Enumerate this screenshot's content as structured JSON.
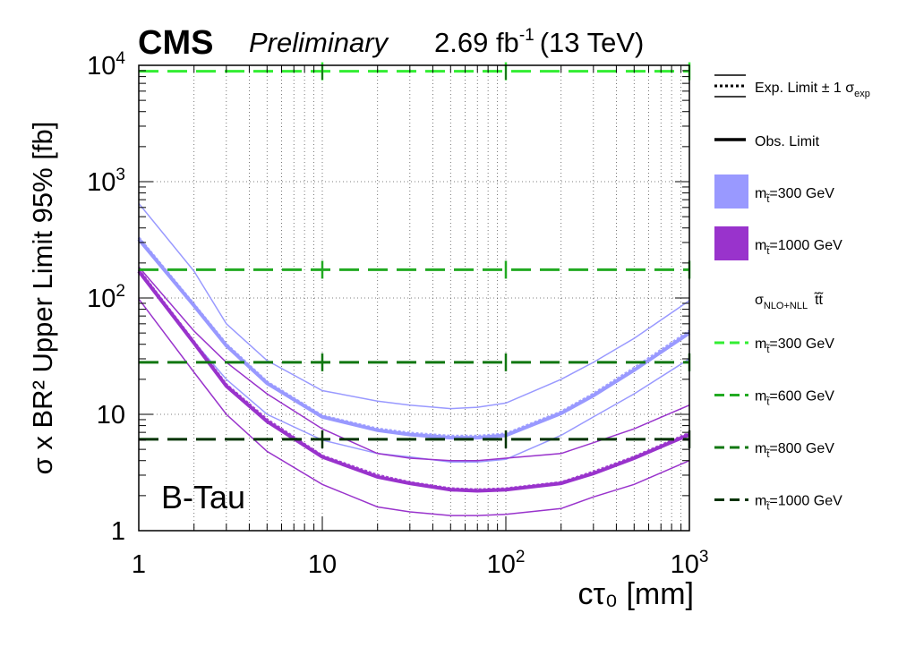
{
  "header": {
    "experiment": "CMS",
    "status": "Preliminary",
    "lumi_value": "2.69 fb",
    "lumi_exp": "-1",
    "energy": "(13 TeV)"
  },
  "chart_data": {
    "type": "line",
    "channel_label": "B-Tau",
    "ylabel": "σ x BR² Upper Limit 95% [fb]",
    "xlabel": "cτ₀ [mm]",
    "x_scale": "log",
    "y_scale": "log",
    "xlim": [
      1,
      1000
    ],
    "ylim": [
      1,
      10000
    ],
    "grid": true,
    "legend_position": "right",
    "x_ticks": [
      {
        "base": "1",
        "exp": ""
      },
      {
        "base": "10",
        "exp": ""
      },
      {
        "base": "10",
        "exp": "2"
      },
      {
        "base": "10",
        "exp": "3"
      }
    ],
    "y_ticks": [
      {
        "base": "1",
        "exp": ""
      },
      {
        "base": "10",
        "exp": ""
      },
      {
        "base": "10",
        "exp": "2"
      },
      {
        "base": "10",
        "exp": "3"
      },
      {
        "base": "10",
        "exp": "4"
      }
    ],
    "x": [
      1,
      2,
      3,
      5,
      10,
      20,
      30,
      50,
      70,
      100,
      200,
      300,
      500,
      1000
    ],
    "signal_series": [
      {
        "name": "m_t̃=300 GeV",
        "color": "#9999ff",
        "expected": [
          330,
          88,
          40,
          19,
          9.7,
          7.5,
          6.9,
          6.5,
          6.5,
          6.8,
          10.5,
          15,
          25,
          52
        ],
        "observed": [
          320,
          86,
          39,
          18.5,
          9.5,
          7.3,
          6.7,
          6.3,
          6.3,
          6.6,
          10.2,
          14.5,
          24,
          50
        ],
        "band_up": [
          650,
          170,
          60,
          29,
          16,
          13,
          12,
          11.2,
          11.5,
          12.5,
          20,
          28,
          45,
          95
        ],
        "band_down": [
          170,
          42,
          20,
          10,
          6,
          4.6,
          4.3,
          3.9,
          3.9,
          4.1,
          6.6,
          9.5,
          15,
          30
        ]
      },
      {
        "name": "m_t̃=1000 GeV",
        "color": "#9933cc",
        "expected": [
          175,
          42,
          18,
          9,
          4.4,
          3.0,
          2.6,
          2.3,
          2.25,
          2.3,
          2.6,
          3.2,
          4.3,
          6.9
        ],
        "observed": [
          170,
          41,
          17.5,
          8.7,
          4.3,
          2.9,
          2.55,
          2.25,
          2.2,
          2.25,
          2.55,
          3.1,
          4.2,
          6.7
        ],
        "band_up": [
          185,
          52,
          28,
          15,
          7.5,
          4.6,
          4.2,
          4.0,
          4.0,
          4.2,
          4.6,
          5.7,
          7.5,
          12
        ],
        "band_down": [
          98,
          23,
          10,
          4.8,
          2.5,
          1.6,
          1.45,
          1.35,
          1.35,
          1.38,
          1.55,
          1.95,
          2.5,
          4.0
        ]
      }
    ],
    "theory_series": [
      {
        "name": "m_t̃=300 GeV",
        "value": 8900,
        "color": "#33ee33"
      },
      {
        "name": "m_t̃=600 GeV",
        "value": 175,
        "color": "#22aa22"
      },
      {
        "name": "m_t̃=800 GeV",
        "value": 28,
        "color": "#117711"
      },
      {
        "name": "m_t̃=1000 GeV",
        "value": 6.1,
        "color": "#003300"
      }
    ]
  },
  "legend": {
    "exp_limit": "Exp. Limit ± 1 σ",
    "exp_subscript": "exp",
    "obs_limit": "Obs. Limit",
    "signal_items": [
      {
        "prefix": "m",
        "sub": "t̃",
        "label": "=300 GeV",
        "color": "#9999ff"
      },
      {
        "prefix": "m",
        "sub": "t̃",
        "label": "=1000 GeV",
        "color": "#9933cc"
      }
    ],
    "xsec_header": "σ",
    "xsec_sub": "NLO+NLL",
    "xsec_tail": "t̃t̃",
    "theory_items": [
      {
        "prefix": "m",
        "sub": "t̃",
        "label": "=300 GeV",
        "color": "#33ee33"
      },
      {
        "prefix": "m",
        "sub": "t̃",
        "label": "=600 GeV",
        "color": "#22aa22"
      },
      {
        "prefix": "m",
        "sub": "t̃",
        "label": "=800 GeV",
        "color": "#117711"
      },
      {
        "prefix": "m",
        "sub": "t̃",
        "label": "=1000 GeV",
        "color": "#003300"
      }
    ]
  }
}
